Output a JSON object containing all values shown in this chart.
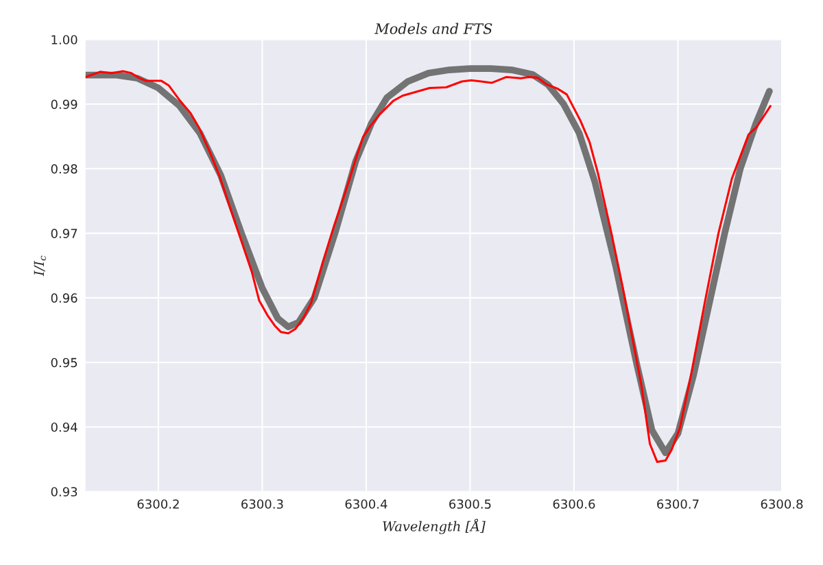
{
  "chart_data": {
    "type": "line",
    "title": "Models and FTS",
    "xlabel": "Wavelength [Å]",
    "ylabel": "I/I$_{c}$",
    "xlim": [
      6300.13,
      6300.8
    ],
    "xticks": [
      6300.2,
      6300.3,
      6300.4,
      6300.5,
      6300.6,
      6300.7,
      6300.8
    ],
    "ylim": [
      0.93,
      1.0
    ],
    "yticks": [
      0.93,
      0.94,
      0.95,
      0.96,
      0.97,
      0.98,
      0.99,
      {
        "value": 1.0,
        "label": "1.00"
      }
    ],
    "grid": true,
    "marker": "none",
    "line_style": "solid",
    "series": [
      {
        "color": "#666666",
        "x": [
          6300.13,
          6300.16,
          6300.18,
          6300.2,
          6300.22,
          6300.24,
          6300.26,
          6300.28,
          6300.3,
          6300.315,
          6300.325,
          6300.335,
          6300.35,
          6300.37,
          6300.39,
          6300.405,
          6300.42,
          6300.44,
          6300.46,
          6300.48,
          6300.5,
          6300.52,
          6300.54,
          6300.56,
          6300.575,
          6300.59,
          6300.605,
          6300.62,
          6300.64,
          6300.66,
          6300.675,
          6300.688,
          6300.7,
          6300.715,
          6300.73,
          6300.745,
          6300.76,
          6300.775,
          6300.788
        ],
        "values": [
          0.9945,
          0.9945,
          0.994,
          0.9925,
          0.9898,
          0.9855,
          0.979,
          0.97,
          0.9615,
          0.9568,
          0.9555,
          0.9562,
          0.96,
          0.97,
          0.9812,
          0.987,
          0.991,
          0.9935,
          0.9948,
          0.9953,
          0.9955,
          0.9955,
          0.9953,
          0.9946,
          0.993,
          0.99,
          0.9855,
          0.978,
          0.965,
          0.95,
          0.9395,
          0.936,
          0.939,
          0.948,
          0.959,
          0.97,
          0.98,
          0.987,
          0.992
        ]
      },
      {
        "color": "#ff0000",
        "x": [
          6300.13,
          6300.144,
          6300.155,
          6300.166,
          6300.174,
          6300.181,
          6300.188,
          6300.203,
          6300.21,
          6300.221,
          6300.231,
          6300.239,
          6300.25,
          6300.259,
          6300.27,
          6300.281,
          6300.29,
          6300.297,
          6300.305,
          6300.312,
          6300.318,
          6300.325,
          6300.332,
          6300.34,
          6300.347,
          6300.358,
          6300.369,
          6300.38,
          6300.391,
          6300.397,
          6300.404,
          6300.413,
          6300.426,
          6300.435,
          6300.446,
          6300.461,
          6300.477,
          6300.492,
          6300.501,
          6300.511,
          6300.521,
          6300.535,
          6300.549,
          6300.556,
          6300.565,
          6300.573,
          6300.584,
          6300.593,
          6300.606,
          6300.615,
          6300.623,
          6300.636,
          6300.647,
          6300.657,
          6300.665,
          6300.673,
          6300.68,
          6300.688,
          6300.694,
          6300.702,
          6300.713,
          6300.726,
          6300.739,
          6300.752,
          6300.768,
          6300.776,
          6300.789
        ],
        "values": [
          0.9942,
          0.995,
          0.9948,
          0.9951,
          0.9948,
          0.9941,
          0.9936,
          0.9936,
          0.9929,
          0.9905,
          0.9886,
          0.9864,
          0.9824,
          0.9788,
          0.9735,
          0.9683,
          0.964,
          0.9596,
          0.9573,
          0.9557,
          0.9547,
          0.9545,
          0.9552,
          0.957,
          0.9592,
          0.9654,
          0.9711,
          0.9764,
          0.982,
          0.9849,
          0.9866,
          0.9884,
          0.9905,
          0.9913,
          0.9918,
          0.9925,
          0.9926,
          0.9935,
          0.9937,
          0.9935,
          0.9933,
          0.9942,
          0.994,
          0.9942,
          0.9941,
          0.9931,
          0.9924,
          0.9915,
          0.9875,
          0.9841,
          0.9793,
          0.97,
          0.9615,
          0.9531,
          0.9463,
          0.9374,
          0.9346,
          0.9348,
          0.9365,
          0.9399,
          0.9484,
          0.9594,
          0.97,
          0.9785,
          0.9853,
          0.9865,
          0.9897
        ]
      }
    ]
  }
}
